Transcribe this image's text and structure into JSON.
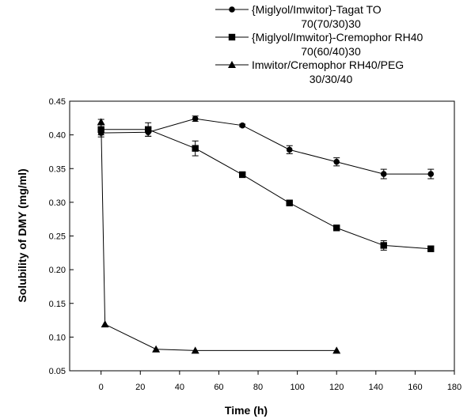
{
  "chart_data": {
    "type": "line",
    "title": "",
    "xlabel": "Time (h)",
    "ylabel": "Solubility of DMY (mg/ml)",
    "xlim": [
      -16,
      180
    ],
    "ylim": [
      0.05,
      0.45
    ],
    "x_ticks": [
      0,
      20,
      40,
      60,
      80,
      100,
      120,
      140,
      160,
      180
    ],
    "y_ticks": [
      0.05,
      0.1,
      0.15,
      0.2,
      0.25,
      0.3,
      0.35,
      0.4,
      0.45
    ],
    "grid": false,
    "legend_position": "top-right",
    "series": [
      {
        "name": "{Miglyol/Imwitor}-Tagat TO 70(70/30)30",
        "legend_lines": [
          "{Miglyol/Imwitor}-Tagat TO",
          "70(70/30)30"
        ],
        "marker": "circle",
        "x": [
          0,
          24,
          48,
          72,
          96,
          120,
          144,
          168
        ],
        "y": [
          0.403,
          0.404,
          0.424,
          0.414,
          0.378,
          0.36,
          0.342,
          0.342
        ],
        "err": [
          0.006,
          0.006,
          0.004,
          0.002,
          0.006,
          0.006,
          0.007,
          0.007
        ]
      },
      {
        "name": "{Miglyol/Imwitor}-Cremophor RH40 70(60/40)30",
        "legend_lines": [
          "{Miglyol/Imwitor}-Cremophor RH40",
          "70(60/40)30"
        ],
        "marker": "square",
        "x": [
          0,
          24,
          48,
          72,
          96,
          120,
          144,
          168
        ],
        "y": [
          0.408,
          0.408,
          0.38,
          0.341,
          0.299,
          0.262,
          0.236,
          0.231
        ],
        "err": [
          0.008,
          0.01,
          0.011,
          0.003,
          0.002,
          0.002,
          0.007,
          0.004
        ]
      },
      {
        "name": "Imwitor/Cremophor RH40/PEG 30/30/40",
        "legend_lines": [
          "Imwitor/Cremophor RH40/PEG",
          "30/30/40"
        ],
        "marker": "triangle",
        "x": [
          0,
          2,
          28,
          48,
          120
        ],
        "y": [
          0.419,
          0.119,
          0.082,
          0.08,
          0.08
        ],
        "err": [
          0.004,
          0,
          0,
          0,
          0
        ]
      }
    ]
  }
}
